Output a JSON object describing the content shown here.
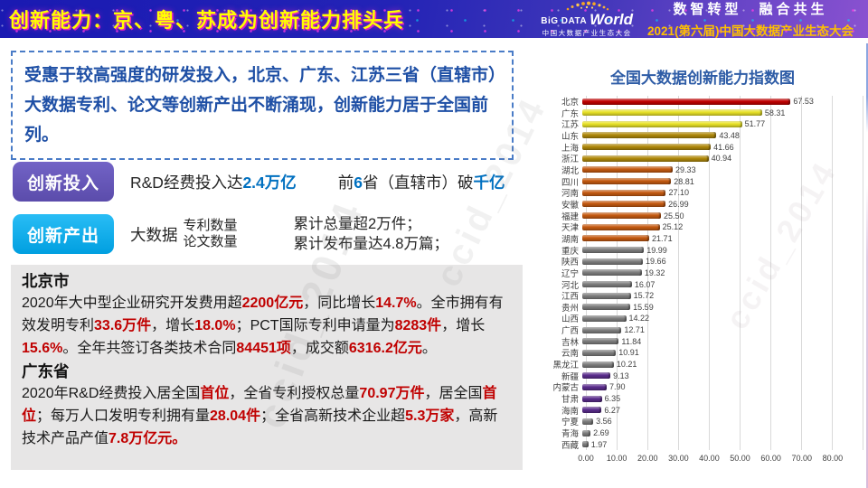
{
  "header": {
    "title": "创新能力：京、粤、苏成为创新能力排头兵",
    "logo": {
      "name1": "BiG DATA",
      "name2": "World",
      "sub": "中国大数据产业生态大会"
    },
    "slogan": "数智转型　融合共生",
    "event": "2021(第六届)中国大数据产业生态大会"
  },
  "summary": {
    "text": "受惠于较高强度的研发投入，北京、广东、江苏三省（直辖市）大数据专利、论文等创新产出不断涌现，创新能力居于全国前列。"
  },
  "rows": {
    "investment": {
      "label": "创新投入",
      "segments": [
        {
          "t": "R&D经费投入达"
        },
        {
          "t": "2.4万亿",
          "em": true
        },
        {
          "t": "前",
          "gap": true
        },
        {
          "t": "6",
          "em": true
        },
        {
          "t": "省（直辖市）破"
        },
        {
          "t": "千亿",
          "em": true
        }
      ]
    },
    "output": {
      "label": "创新产出",
      "lead": "大数据",
      "items": [
        "专利数量",
        "论文数量"
      ],
      "results": [
        "累计总量超2万件；",
        "累计发布量达4.8万篇；"
      ]
    }
  },
  "details": {
    "beijing": {
      "title": "北京市",
      "segments": [
        {
          "t": "2020年大中型企业研究开发费用超"
        },
        {
          "t": "2200亿元",
          "em": true
        },
        {
          "t": "，同比增长"
        },
        {
          "t": "14.7%",
          "em": true
        },
        {
          "t": "。全市拥有有效发明专利"
        },
        {
          "t": "33.6万件",
          "em": true
        },
        {
          "t": "，增长"
        },
        {
          "t": "18.0%",
          "em": true
        },
        {
          "t": "；PCT国际专利申请量为"
        },
        {
          "t": "8283件",
          "em": true
        },
        {
          "t": "，增长"
        },
        {
          "t": "15.6%",
          "em": true
        },
        {
          "t": "。全年共签订各类技术合同"
        },
        {
          "t": "84451项",
          "em": true
        },
        {
          "t": "，成交额"
        },
        {
          "t": "6316.2亿元",
          "em": true
        },
        {
          "t": "。"
        }
      ]
    },
    "guangdong": {
      "title": "广东省",
      "segments": [
        {
          "t": "2020年R&D经费投入居全国"
        },
        {
          "t": "首位",
          "em": true
        },
        {
          "t": "，全省专利授权总量"
        },
        {
          "t": "70.97万件",
          "em": true
        },
        {
          "t": "，居全国"
        },
        {
          "t": "首位",
          "em": true
        },
        {
          "t": "；每万人口发明专利拥有量"
        },
        {
          "t": "28.04件",
          "em": true
        },
        {
          "t": "；全省高新技术企业超"
        },
        {
          "t": "5.3万家",
          "em": true
        },
        {
          "t": "，高新技术产品产值"
        },
        {
          "t": "7.8万亿元。",
          "em": true
        }
      ]
    }
  },
  "watermark": "ccid_2014",
  "chart_data": {
    "type": "bar",
    "orientation": "horizontal",
    "title": "全国大数据创新能力指数图",
    "categories": [
      "北京",
      "广东",
      "江苏",
      "山东",
      "上海",
      "浙江",
      "湖北",
      "四川",
      "河南",
      "安徽",
      "福建",
      "天津",
      "湖南",
      "重庆",
      "陕西",
      "辽宁",
      "河北",
      "江西",
      "贵州",
      "山西",
      "广西",
      "吉林",
      "云南",
      "黑龙江",
      "新疆",
      "内蒙古",
      "甘肃",
      "海南",
      "宁夏",
      "青海",
      "西藏"
    ],
    "values": [
      67.53,
      58.31,
      51.77,
      43.48,
      41.66,
      40.94,
      29.33,
      28.81,
      27.1,
      26.99,
      25.5,
      25.12,
      21.71,
      19.99,
      19.66,
      19.32,
      16.07,
      15.72,
      15.59,
      14.22,
      12.71,
      11.84,
      10.91,
      10.21,
      9.13,
      7.9,
      6.35,
      6.27,
      3.56,
      2.69,
      1.97
    ],
    "colors": [
      "#c00000",
      "#e8e228",
      "#e8e228",
      "#b0890b",
      "#b0890b",
      "#b0890b",
      "#c55a11",
      "#c55a11",
      "#c55a11",
      "#c55a11",
      "#c55a11",
      "#c55a11",
      "#c55a11",
      "#7f7f7f",
      "#7f7f7f",
      "#7f7f7f",
      "#7f7f7f",
      "#7f7f7f",
      "#7f7f7f",
      "#7f7f7f",
      "#7f7f7f",
      "#7f7f7f",
      "#7f7f7f",
      "#7f7f7f",
      "#5b2d8d",
      "#5b2d8d",
      "#5b2d8d",
      "#5b2d8d",
      "#7f7f7f",
      "#7f7f7f",
      "#7f7f7f"
    ],
    "xticks": [
      "0.00",
      "10.00",
      "20.00",
      "30.00",
      "40.00",
      "50.00",
      "60.00",
      "70.00",
      "80.00"
    ],
    "xlim": [
      0,
      90
    ],
    "grid": true,
    "value_labels": "shown at bar end, 2 decimals"
  }
}
